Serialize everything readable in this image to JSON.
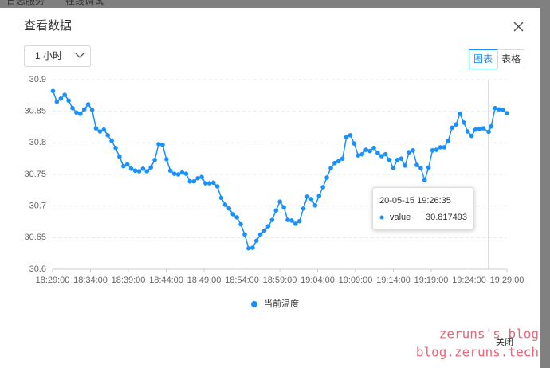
{
  "background_tabs": [
    "日志服务",
    "在线调试"
  ],
  "dialog": {
    "title": "查看数据",
    "range_select": "1 小时",
    "view_buttons": [
      "图表",
      "表格"
    ],
    "close_button": "关闭"
  },
  "watermark": [
    "zeruns's blog",
    "blog.zeruns.tech"
  ],
  "chart_data": {
    "type": "line",
    "x": [
      "18:29:03",
      "18:29:34",
      "18:30:05",
      "18:30:36",
      "18:31:07",
      "18:31:38",
      "18:32:09",
      "18:32:40",
      "18:33:11",
      "18:33:42",
      "18:34:13",
      "18:34:44",
      "18:35:15",
      "18:35:46",
      "18:36:17",
      "18:36:48",
      "18:37:19",
      "18:37:50",
      "18:38:21",
      "18:38:52",
      "18:39:23",
      "18:39:54",
      "18:40:25",
      "18:40:56",
      "18:41:27",
      "18:41:58",
      "18:42:29",
      "18:43:00",
      "18:43:31",
      "18:44:02",
      "18:44:33",
      "18:45:04",
      "18:45:35",
      "18:46:06",
      "18:46:37",
      "18:47:08",
      "18:47:39",
      "18:48:10",
      "18:48:41",
      "18:49:12",
      "18:49:43",
      "18:50:14",
      "18:50:45",
      "18:51:16",
      "18:51:47",
      "18:52:18",
      "18:52:49",
      "18:53:20",
      "18:53:51",
      "18:54:22",
      "18:54:53",
      "18:55:24",
      "18:55:55",
      "18:56:26",
      "18:56:57",
      "18:57:28",
      "18:57:59",
      "18:58:30",
      "18:59:01",
      "18:59:32",
      "19:00:03",
      "19:00:34",
      "19:01:05",
      "19:01:36",
      "19:02:07",
      "19:02:38",
      "19:03:09",
      "19:03:40",
      "19:04:11",
      "19:04:42",
      "19:05:13",
      "19:05:44",
      "19:06:15",
      "19:06:46",
      "19:07:17",
      "19:07:48",
      "19:08:19",
      "19:08:50",
      "19:09:21",
      "19:09:52",
      "19:10:23",
      "19:10:54",
      "19:11:25",
      "19:11:56",
      "19:12:27",
      "19:12:58",
      "19:13:29",
      "19:14:00",
      "19:14:31",
      "19:15:02",
      "19:15:33",
      "19:16:04",
      "19:16:35",
      "19:17:06",
      "19:17:37",
      "19:18:08",
      "19:18:39",
      "19:19:10",
      "19:19:41",
      "19:20:12",
      "19:20:43",
      "19:21:14",
      "19:21:45",
      "19:22:16",
      "19:22:47",
      "19:23:18",
      "19:23:49",
      "19:24:20",
      "19:24:51",
      "19:25:22",
      "19:25:53",
      "19:26:35",
      "19:26:55",
      "19:27:26",
      "19:27:57",
      "19:28:28",
      "19:28:59"
    ],
    "series": [
      {
        "name": "当前温度",
        "color": "#1890ff",
        "values": [
          30.882,
          30.865,
          30.87,
          30.876,
          30.867,
          30.855,
          30.848,
          30.846,
          30.853,
          30.861,
          30.852,
          30.823,
          30.818,
          30.821,
          30.812,
          30.803,
          30.792,
          30.778,
          30.763,
          30.766,
          30.759,
          30.756,
          30.755,
          30.759,
          30.755,
          30.761,
          30.773,
          30.798,
          30.797,
          30.774,
          30.756,
          30.751,
          30.75,
          30.753,
          30.751,
          30.739,
          30.739,
          30.744,
          30.746,
          30.736,
          30.736,
          30.737,
          30.731,
          30.713,
          30.702,
          30.696,
          30.687,
          30.682,
          30.671,
          30.655,
          30.633,
          30.634,
          30.645,
          30.655,
          30.661,
          30.668,
          30.678,
          30.693,
          30.707,
          30.698,
          30.678,
          30.677,
          30.672,
          30.676,
          30.696,
          30.715,
          30.711,
          30.701,
          30.716,
          30.73,
          30.745,
          30.76,
          30.768,
          30.771,
          30.775,
          30.809,
          30.812,
          30.799,
          30.78,
          30.782,
          30.789,
          30.787,
          30.792,
          30.784,
          30.779,
          30.782,
          30.773,
          30.76,
          30.773,
          30.775,
          30.764,
          30.785,
          30.788,
          30.765,
          30.76,
          30.741,
          30.761,
          30.788,
          30.789,
          30.793,
          30.793,
          30.803,
          30.824,
          30.829,
          30.846,
          30.832,
          30.818,
          30.811,
          30.821,
          30.822,
          30.823,
          30.817493,
          30.826,
          30.855,
          30.853,
          30.852,
          30.847
        ]
      }
    ],
    "xlim": [
      "18:29:00",
      "19:29:00"
    ],
    "xticks": [
      "18:29:00",
      "18:34:00",
      "18:39:00",
      "18:44:00",
      "18:49:00",
      "18:54:00",
      "18:59:00",
      "19:04:00",
      "19:09:00",
      "19:14:00",
      "19:19:00",
      "19:24:00",
      "19:29:00"
    ],
    "ylim": [
      30.6,
      30.9
    ],
    "yticks": [
      30.6,
      30.65,
      30.7,
      30.75,
      30.8,
      30.85,
      30.9
    ],
    "grid": true,
    "legend": "bottom",
    "tooltip": {
      "index": 111,
      "title": "20-05-15 19:26:35",
      "label": "value"
    }
  }
}
